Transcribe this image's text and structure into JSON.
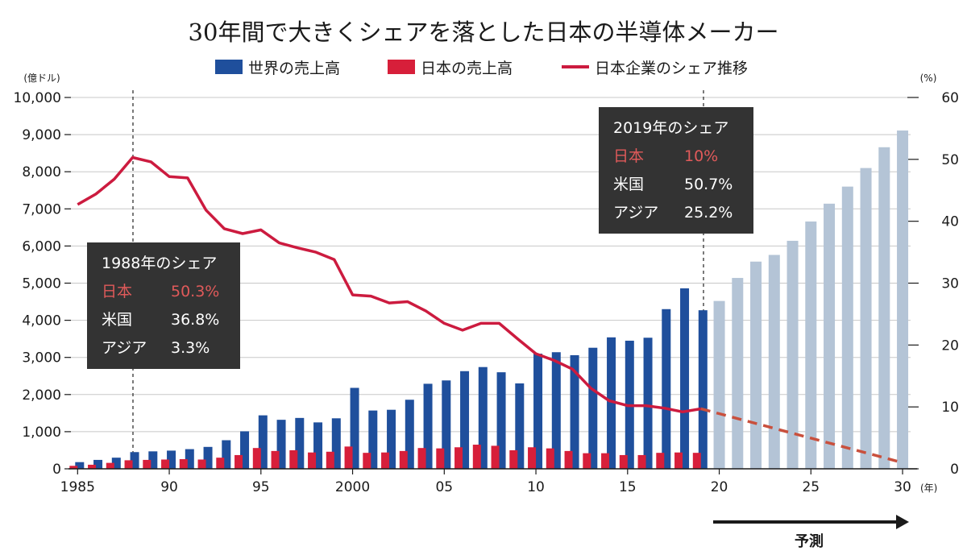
{
  "chart_data": {
    "type": "bar",
    "title": "30年間で大きくシェアを落とした日本の半導体メーカー",
    "y_left_unit": "(億ドル)",
    "y_right_unit": "(%)",
    "x_unit": "(年)",
    "ylim_left": [
      0,
      10000
    ],
    "ylim_right": [
      0,
      60
    ],
    "y_left_ticks": [
      {
        "value": 0,
        "label": "0"
      },
      {
        "value": 1000,
        "label": "1,000"
      },
      {
        "value": 2000,
        "label": "2,000"
      },
      {
        "value": 3000,
        "label": "3,000"
      },
      {
        "value": 4000,
        "label": "4,000"
      },
      {
        "value": 5000,
        "label": "5,000"
      },
      {
        "value": 6000,
        "label": "6,000"
      },
      {
        "value": 7000,
        "label": "7,000"
      },
      {
        "value": 8000,
        "label": "8,000"
      },
      {
        "value": 9000,
        "label": "9,000"
      },
      {
        "value": 10000,
        "label": "10,000"
      }
    ],
    "y_right_ticks": [
      {
        "value": 0,
        "label": "0"
      },
      {
        "value": 10,
        "label": "10"
      },
      {
        "value": 20,
        "label": "20"
      },
      {
        "value": 30,
        "label": "30"
      },
      {
        "value": 40,
        "label": "40"
      },
      {
        "value": 50,
        "label": "50"
      },
      {
        "value": 60,
        "label": "60"
      }
    ],
    "x_ticks": [
      {
        "year": 1985,
        "label": "1985"
      },
      {
        "year": 1990,
        "label": "90"
      },
      {
        "year": 1995,
        "label": "95"
      },
      {
        "year": 2000,
        "label": "2000"
      },
      {
        "year": 2005,
        "label": "05"
      },
      {
        "year": 2010,
        "label": "10"
      },
      {
        "year": 2015,
        "label": "15"
      },
      {
        "year": 2020,
        "label": "20"
      },
      {
        "year": 2025,
        "label": "25"
      },
      {
        "year": 2030,
        "label": "30"
      }
    ],
    "years": [
      1985,
      1986,
      1987,
      1988,
      1989,
      1990,
      1991,
      1992,
      1993,
      1994,
      1995,
      1996,
      1997,
      1998,
      1999,
      2000,
      2001,
      2002,
      2003,
      2004,
      2005,
      2006,
      2007,
      2008,
      2009,
      2010,
      2011,
      2012,
      2013,
      2014,
      2015,
      2016,
      2017,
      2018,
      2019
    ],
    "series": [
      {
        "name": "世界の売上高",
        "color": "#1f4f9c",
        "values": [
          180,
          240,
          300,
          450,
          470,
          490,
          530,
          590,
          770,
          1010,
          1440,
          1320,
          1370,
          1250,
          1360,
          2180,
          1570,
          1590,
          1860,
          2290,
          2380,
          2630,
          2740,
          2600,
          2300,
          3100,
          3140,
          3060,
          3260,
          3540,
          3450,
          3530,
          4300,
          4860,
          4270
        ]
      },
      {
        "name": "日本の売上高",
        "color": "#d71f3a",
        "values": [
          80,
          110,
          160,
          230,
          240,
          250,
          260,
          250,
          300,
          370,
          560,
          480,
          500,
          440,
          460,
          600,
          430,
          440,
          480,
          560,
          550,
          580,
          650,
          620,
          500,
          580,
          550,
          480,
          420,
          420,
          370,
          370,
          430,
          440,
          430
        ]
      },
      {
        "name": "日本企業のシェア推移",
        "type": "line",
        "axis": "right",
        "color": "#cc1b3f",
        "values": [
          42.7,
          44.4,
          46.8,
          50.3,
          49.6,
          47.2,
          47.0,
          41.8,
          38.8,
          38.0,
          38.6,
          36.5,
          35.7,
          35.0,
          33.8,
          28.1,
          27.9,
          26.8,
          27.0,
          25.5,
          23.5,
          22.4,
          23.5,
          23.5,
          21.0,
          18.6,
          17.5,
          16.1,
          13.0,
          11.0,
          10.2,
          10.2,
          9.8,
          9.2,
          9.7
        ]
      }
    ],
    "forecast": {
      "label": "予測",
      "years": [
        2020,
        2021,
        2022,
        2023,
        2024,
        2025,
        2026,
        2027,
        2028,
        2029,
        2030
      ],
      "world_values": [
        4520,
        5140,
        5580,
        5760,
        6140,
        6660,
        7140,
        7600,
        8100,
        8660,
        9110
      ],
      "world_color": "#b4c4d6",
      "share_start": [
        2019,
        9.7
      ],
      "share_end": [
        2030,
        1
      ],
      "share_color": "#c9503d"
    },
    "annotations": [
      {
        "title": "1988年のシェア",
        "rows": [
          {
            "region": "日本",
            "value": "50.3%",
            "highlight": true
          },
          {
            "region": "米国",
            "value": "36.8%",
            "highlight": false
          },
          {
            "region": "アジア",
            "value": "3.3%",
            "highlight": false
          }
        ]
      },
      {
        "title": "2019年のシェア",
        "rows": [
          {
            "region": "日本",
            "value": "10%",
            "highlight": true
          },
          {
            "region": "米国",
            "value": "50.7%",
            "highlight": false
          },
          {
            "region": "アジア",
            "value": "25.2%",
            "highlight": false
          }
        ]
      }
    ]
  }
}
